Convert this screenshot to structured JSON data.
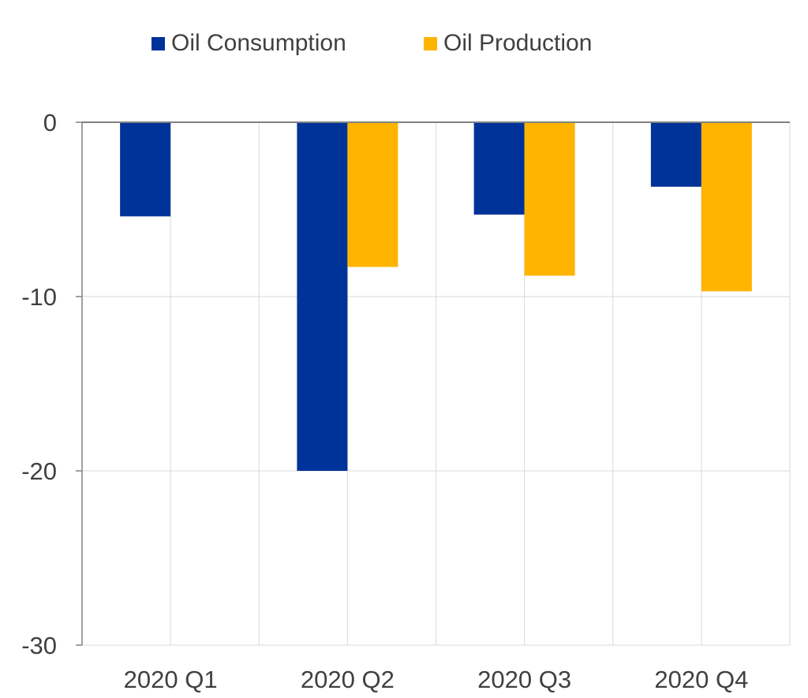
{
  "chart_data": {
    "type": "bar",
    "title": "",
    "xlabel": "",
    "ylabel": "",
    "categories": [
      "2020 Q1",
      "2020 Q2",
      "2020 Q3",
      "2020 Q4"
    ],
    "series": [
      {
        "name": "Oil Consumption",
        "color": "#003399",
        "values": [
          -5.4,
          -20.0,
          -5.3,
          -3.7
        ]
      },
      {
        "name": "Oil Production",
        "color": "#FFB400",
        "values": [
          null,
          -8.3,
          -8.8,
          -9.7
        ]
      }
    ],
    "ylim": [
      -30,
      0
    ],
    "yticks": [
      0,
      -10,
      -20,
      -30
    ],
    "ytick_labels": [
      "0",
      "-10",
      "-20",
      "-30"
    ],
    "grid": true,
    "legend_position": "top"
  }
}
